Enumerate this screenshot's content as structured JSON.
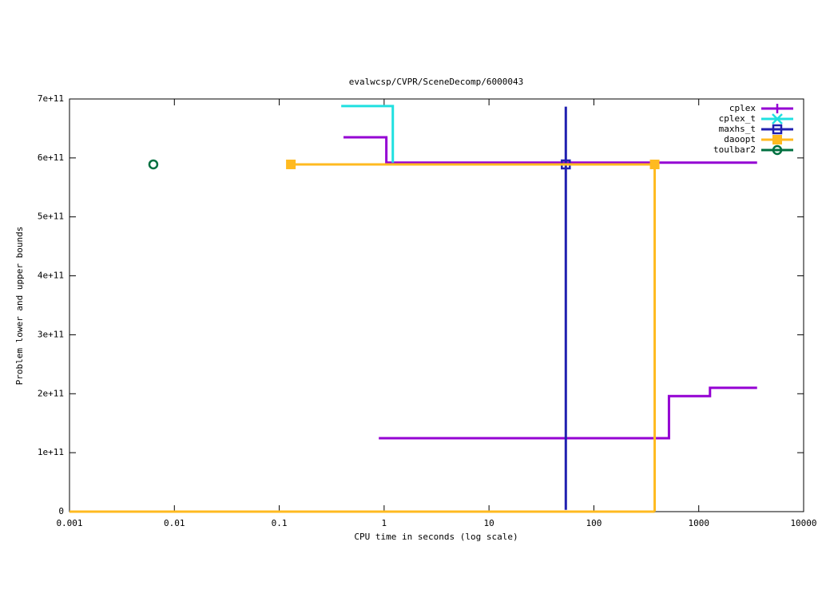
{
  "chart_data": {
    "type": "line",
    "title": "evalwcsp/CVPR/SceneDecomp/6000043",
    "xlabel": "CPU time in seconds (log scale)",
    "ylabel": "Problem lower and upper bounds",
    "xlog": true,
    "xlim": [
      0.001,
      10000
    ],
    "xticks": [
      0.001,
      0.01,
      0.1,
      1,
      10,
      100,
      1000,
      10000
    ],
    "ylim": [
      0,
      700000000000
    ],
    "yticks": [
      0,
      {
        "value": 100000000000,
        "label": "1e+11"
      },
      {
        "value": 200000000000,
        "label": "2e+11"
      },
      {
        "value": 300000000000,
        "label": "3e+11"
      },
      {
        "value": 400000000000,
        "label": "4e+11"
      },
      {
        "value": 500000000000,
        "label": "5e+11"
      },
      {
        "value": 600000000000,
        "label": "6e+11"
      },
      {
        "value": 700000000000,
        "label": "7e+11"
      }
    ],
    "legend": "top-right",
    "series": [
      {
        "name": "cplex",
        "color": "#9400d3",
        "marker": "plus",
        "x": [
          0.41,
          1.05,
          1.05,
          3600,
          null,
          0.89,
          520,
          520,
          1280,
          1280,
          3600
        ],
        "values": [
          635000000000,
          635000000000,
          592000000000,
          592000000000,
          null,
          124500000000,
          124500000000,
          196000000000,
          196000000000,
          210000000000,
          210000000000
        ]
      },
      {
        "name": "cplex_t",
        "color": "#20e0e0",
        "marker": "cross",
        "x": [
          0.39,
          1.21,
          1.21
        ],
        "values": [
          688000000000,
          688000000000,
          592000000000
        ]
      },
      {
        "name": "maxhs_t",
        "color": "#2020b0",
        "marker": "square",
        "x": [
          54,
          54
        ],
        "values": [
          687000000000,
          3000000000
        ],
        "markers": {
          "x": [
            54
          ],
          "values": [
            589000000000
          ]
        }
      },
      {
        "name": "daoopt",
        "color": "#ffba20",
        "marker": "filled-square",
        "x": [
          0.129,
          380,
          380,
          null,
          0.001,
          380
        ],
        "values": [
          589000000000,
          589000000000,
          0,
          null,
          0,
          0
        ],
        "markers": {
          "x": [
            0.129,
            380
          ],
          "values": [
            589000000000,
            589000000000
          ]
        }
      },
      {
        "name": "toulbar2",
        "color": "#007040",
        "marker": "circle",
        "markers": {
          "x": [
            0.0063
          ],
          "values": [
            589000000000
          ]
        }
      }
    ]
  }
}
